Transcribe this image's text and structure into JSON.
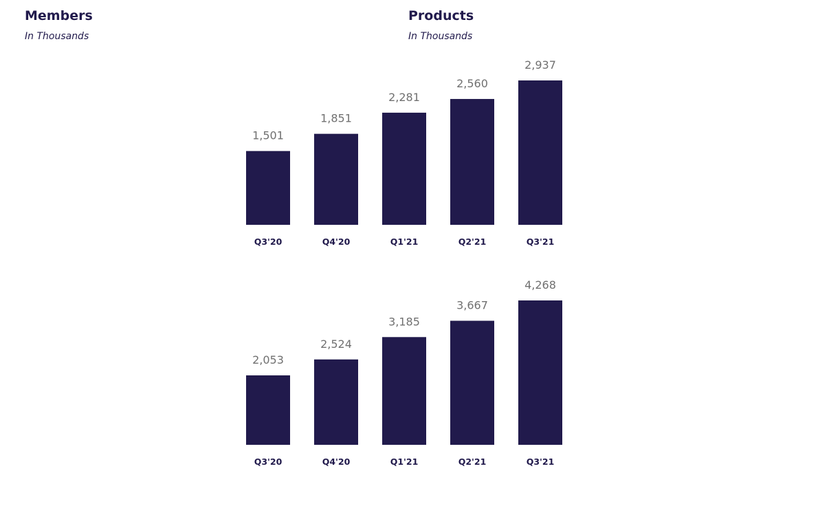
{
  "panels": {
    "members": {
      "title": "Members",
      "subtitle": "In Thousands"
    },
    "products": {
      "title": "Products",
      "subtitle": "In Thousands"
    }
  },
  "colors": {
    "bar": "#211a4c",
    "value_label": "#707070",
    "category_label": "#211a4c"
  },
  "chart_data": [
    {
      "type": "bar",
      "title": "",
      "categories": [
        "Q3'20",
        "Q4'20",
        "Q1'21",
        "Q2'21",
        "Q3'21"
      ],
      "values": [
        1501,
        1851,
        2281,
        2560,
        2937
      ],
      "value_labels": [
        "1,501",
        "1,851",
        "2,281",
        "2,560",
        "2,937"
      ],
      "xlabel": "",
      "ylabel": "",
      "grid": false
    },
    {
      "type": "bar",
      "title": "",
      "categories": [
        "Q3'20",
        "Q4'20",
        "Q1'21",
        "Q2'21",
        "Q3'21"
      ],
      "values": [
        2053,
        2524,
        3185,
        3667,
        4268
      ],
      "value_labels": [
        "2,053",
        "2,524",
        "3,185",
        "3,667",
        "4,268"
      ],
      "xlabel": "",
      "ylabel": "",
      "grid": false
    }
  ]
}
